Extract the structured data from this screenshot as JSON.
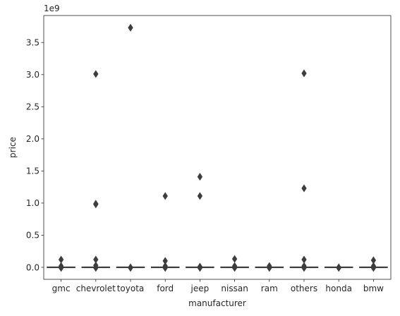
{
  "chart_data": {
    "type": "box",
    "title": "",
    "xlabel": "manufacturer",
    "ylabel": "price",
    "y_multiplier": "1e9",
    "ylim": [
      -0.187,
      3.92
    ],
    "y_ticks": [
      0.0,
      0.5,
      1.0,
      1.5,
      2.0,
      2.5,
      3.0,
      3.5
    ],
    "y_tick_labels": [
      "0.0",
      "0.5",
      "1.0",
      "1.5",
      "2.0",
      "2.5",
      "3.0",
      "3.5"
    ],
    "categories": [
      "gmc",
      "chevrolet",
      "toyota",
      "ford",
      "jeep",
      "nissan",
      "ram",
      "others",
      "honda",
      "bmw"
    ],
    "box_color": "#4c72b0",
    "median_color": "#3d3d3d",
    "flier_color": "#3d3d3d",
    "boxes": [
      {
        "category": "gmc",
        "median": 0.0,
        "q1": 0.0,
        "q3": 0.0,
        "outliers": [
          0.12,
          0.02,
          0.0,
          -0.01
        ]
      },
      {
        "category": "chevrolet",
        "median": 0.0,
        "q1": 0.0,
        "q3": 0.0,
        "outliers": [
          3.01,
          0.99,
          0.98,
          0.12,
          0.03,
          0.0,
          -0.01
        ]
      },
      {
        "category": "toyota",
        "median": 0.0,
        "q1": 0.0,
        "q3": 0.0,
        "outliers": [
          3.73,
          0.0,
          -0.01
        ]
      },
      {
        "category": "ford",
        "median": 0.0,
        "q1": 0.0,
        "q3": 0.0,
        "outliers": [
          1.11,
          0.1,
          0.02,
          0.0,
          -0.01
        ]
      },
      {
        "category": "jeep",
        "median": 0.0,
        "q1": 0.0,
        "q3": 0.0,
        "outliers": [
          1.41,
          1.11,
          0.01,
          0.0,
          -0.01
        ]
      },
      {
        "category": "nissan",
        "median": 0.0,
        "q1": 0.0,
        "q3": 0.0,
        "outliers": [
          0.13,
          0.02,
          0.0,
          -0.01
        ]
      },
      {
        "category": "ram",
        "median": 0.0,
        "q1": 0.0,
        "q3": 0.0,
        "outliers": [
          0.02,
          0.0,
          -0.01
        ]
      },
      {
        "category": "others",
        "median": 0.0,
        "q1": 0.0,
        "q3": 0.0,
        "outliers": [
          3.02,
          1.23,
          0.12,
          0.02,
          0.0,
          -0.01
        ]
      },
      {
        "category": "honda",
        "median": 0.0,
        "q1": 0.0,
        "q3": 0.0,
        "outliers": [
          0.0,
          -0.01
        ]
      },
      {
        "category": "bmw",
        "median": 0.0,
        "q1": 0.0,
        "q3": 0.0,
        "outliers": [
          0.11,
          0.02,
          0.0,
          -0.01
        ]
      }
    ]
  }
}
